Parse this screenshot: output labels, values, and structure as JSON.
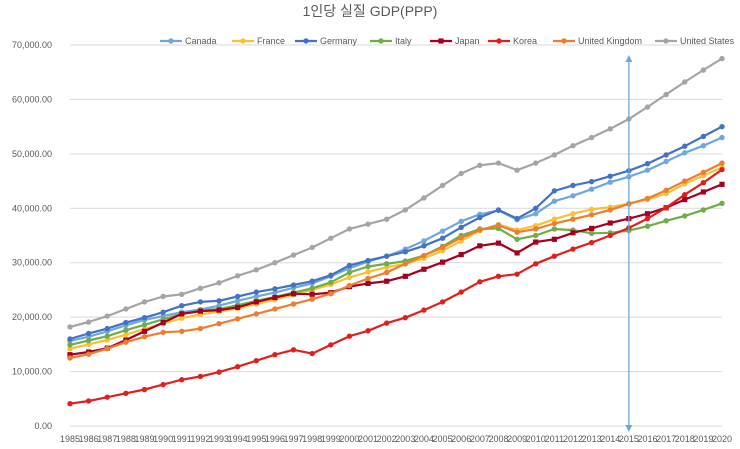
{
  "chart_data": {
    "type": "line",
    "title": "1인당 실질 GDP(PPP)",
    "xlabel": "",
    "ylabel": "",
    "ylim": [
      0,
      70000
    ],
    "yticks": [
      "0.00",
      "10,000.00",
      "20,000.00",
      "30,000.00",
      "40,000.00",
      "50,000.00",
      "60,000.00",
      "70,000.00"
    ],
    "grid": true,
    "legend_position": "top",
    "x": [
      "1985",
      "1986",
      "1987",
      "1988",
      "1989",
      "1990",
      "1991",
      "1992",
      "1993",
      "1994",
      "1995",
      "1996",
      "1997",
      "1998",
      "1999",
      "2000",
      "2001",
      "2002",
      "2003",
      "2004",
      "2005",
      "2006",
      "2007",
      "2008",
      "2009",
      "2010",
      "2011",
      "2012",
      "2013",
      "2014",
      "2015",
      "2016",
      "2017",
      "2018",
      "2019",
      "2020"
    ],
    "series": [
      {
        "name": "Canada",
        "color": "#6fa8dc",
        "marker": "circle",
        "values": [
          15600,
          16400,
          17400,
          18500,
          19500,
          20200,
          20900,
          21400,
          22100,
          23000,
          23800,
          24500,
          25400,
          26200,
          27500,
          29000,
          30200,
          31200,
          32500,
          34000,
          35800,
          37600,
          38900,
          39600,
          37900,
          39000,
          41300,
          42300,
          43500,
          44800,
          45800,
          47000,
          48600,
          50200,
          51500,
          53000
        ]
      },
      {
        "name": "France",
        "color": "#f6c232",
        "marker": "circle",
        "values": [
          14200,
          15000,
          15800,
          16800,
          17800,
          18800,
          19800,
          20500,
          21000,
          21600,
          22400,
          23200,
          24100,
          25000,
          26000,
          27300,
          28300,
          29200,
          29800,
          30800,
          32200,
          34000,
          35900,
          37000,
          36000,
          36800,
          38000,
          39000,
          39800,
          40200,
          40900,
          41600,
          42700,
          44500,
          46000,
          47500
        ]
      },
      {
        "name": "Germany",
        "color": "#4472c4",
        "marker": "circle",
        "values": [
          16000,
          17000,
          17900,
          19000,
          19900,
          20900,
          22100,
          22800,
          23000,
          23800,
          24600,
          25200,
          25900,
          26600,
          27700,
          29500,
          30400,
          31200,
          32000,
          33100,
          34500,
          36500,
          38300,
          39700,
          38100,
          40000,
          43200,
          44200,
          44900,
          45900,
          46900,
          48200,
          49800,
          51400,
          53200,
          55000
        ]
      },
      {
        "name": "Italy",
        "color": "#70ad47",
        "marker": "circle",
        "values": [
          14900,
          15700,
          16500,
          17600,
          18600,
          19600,
          20600,
          21200,
          21500,
          22200,
          23000,
          23700,
          24500,
          25300,
          26400,
          28200,
          29300,
          29800,
          30300,
          31300,
          33000,
          35000,
          36200,
          36300,
          34300,
          35000,
          36200,
          36000,
          35400,
          35500,
          35900,
          36700,
          37700,
          38600,
          39700,
          40900
        ]
      },
      {
        "name": "Japan",
        "color": "#a50021",
        "marker": "square",
        "values": [
          13100,
          13600,
          14300,
          15800,
          17400,
          19000,
          20600,
          21100,
          21300,
          21800,
          22800,
          23600,
          24300,
          24200,
          24500,
          25600,
          26200,
          26600,
          27500,
          28800,
          30100,
          31500,
          33100,
          33600,
          31800,
          33800,
          34300,
          35500,
          36300,
          37300,
          38100,
          39000,
          40100,
          41600,
          43000,
          44400
        ]
      },
      {
        "name": "Korea",
        "color": "#e0201f",
        "marker": "circle",
        "values": [
          4100,
          4600,
          5300,
          6000,
          6700,
          7600,
          8500,
          9100,
          9900,
          10900,
          12000,
          13100,
          14000,
          13300,
          14900,
          16500,
          17500,
          18900,
          19900,
          21300,
          22800,
          24600,
          26500,
          27500,
          27900,
          29800,
          31200,
          32500,
          33700,
          35000,
          36400,
          38100,
          40100,
          42500,
          44700,
          47100
        ]
      },
      {
        "name": "United Kingdom",
        "color": "#ed7d31",
        "marker": "circle",
        "values": [
          12500,
          13200,
          14200,
          15400,
          16400,
          17200,
          17400,
          17900,
          18800,
          19700,
          20600,
          21500,
          22400,
          23300,
          24300,
          25800,
          27100,
          28200,
          29800,
          31300,
          32800,
          34600,
          36000,
          36900,
          35600,
          36200,
          37200,
          38000,
          38800,
          39700,
          40800,
          41800,
          43300,
          45000,
          46600,
          48300
        ]
      },
      {
        "name": "United States",
        "color": "#a5a5a5",
        "marker": "circle",
        "values": [
          18200,
          19100,
          20200,
          21500,
          22800,
          23800,
          24200,
          25300,
          26300,
          27600,
          28700,
          30000,
          31400,
          32800,
          34500,
          36200,
          37100,
          38000,
          39700,
          41900,
          44200,
          46400,
          47900,
          48300,
          47000,
          48300,
          49800,
          51500,
          53000,
          54600,
          56400,
          58600,
          60900,
          63200,
          65400,
          67500
        ]
      }
    ],
    "annotation": {
      "type": "vertical-arrow",
      "x": "2015",
      "color": "#6fa8dc"
    }
  }
}
